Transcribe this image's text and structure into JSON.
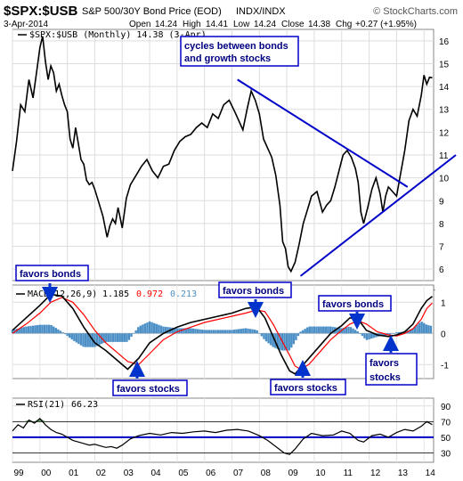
{
  "header": {
    "symbol": "$SPX:$USB",
    "description": "S&P 500/30Y Bond Price (EOD)",
    "exchange": "INDX/INDX",
    "date": "3-Apr-2014",
    "open_label": "Open",
    "open": "14.24",
    "high_label": "High",
    "high": "14.41",
    "low_label": "Low",
    "low": "14.24",
    "close_label": "Close",
    "close": "14.38",
    "chg_label": "Chg",
    "chg": "+0.27 (+1.95%)",
    "brand": "© StockCharts.com"
  },
  "colors": {
    "price": "#000000",
    "trendline": "#0000c8",
    "macd_signal": "#ff0000",
    "histogram": "#4b8fc6",
    "annotation_border": "#0000c8",
    "annotation_text": "#000080",
    "arrow": "#0033cc",
    "rsi_fill": "#3a7d3a"
  },
  "chart_data": [
    {
      "type": "line",
      "panel": "price",
      "legend": "$SPX:$USB (Monthly) 14.38 (3-Apr)",
      "x_ticks": [
        "99",
        "00",
        "01",
        "02",
        "03",
        "04",
        "05",
        "06",
        "07",
        "08",
        "09",
        "10",
        "11",
        "12",
        "13",
        "14"
      ],
      "y_ticks": [
        6,
        7,
        8,
        9,
        10,
        11,
        12,
        13,
        14,
        15,
        16
      ],
      "ylim": [
        5.5,
        16.5
      ],
      "xlim": [
        1999.0,
        2014.35
      ],
      "series": [
        {
          "x": [
            1999.0,
            1999.15,
            1999.3,
            1999.45,
            1999.6,
            1999.75,
            1999.9,
            2000.0,
            2000.1,
            2000.2,
            2000.3,
            2000.4,
            2000.5,
            2000.6,
            2000.7,
            2000.8,
            2000.9,
            2001.0,
            2001.1,
            2001.2,
            2001.3,
            2001.4,
            2001.5,
            2001.6,
            2001.7,
            2001.8,
            2001.9,
            2002.0,
            2002.15,
            2002.3,
            2002.45,
            2002.55,
            2002.65,
            2002.75,
            2002.85,
            2003.0,
            2003.15,
            2003.3,
            2003.5,
            2003.7,
            2003.9,
            2004.1,
            2004.3,
            2004.5,
            2004.7,
            2004.9,
            2005.1,
            2005.3,
            2005.5,
            2005.7,
            2005.9,
            2006.1,
            2006.3,
            2006.5,
            2006.7,
            2006.9,
            2007.1,
            2007.25,
            2007.4,
            2007.55,
            2007.7,
            2007.85,
            2008.0,
            2008.15,
            2008.3,
            2008.45,
            2008.6,
            2008.75,
            2008.85,
            2008.95,
            2009.05,
            2009.15,
            2009.3,
            2009.45,
            2009.6,
            2009.75,
            2009.9,
            2010.1,
            2010.3,
            2010.45,
            2010.6,
            2010.75,
            2010.9,
            2011.05,
            2011.2,
            2011.35,
            2011.5,
            2011.6,
            2011.7,
            2011.8,
            2011.95,
            2012.1,
            2012.25,
            2012.4,
            2012.5,
            2012.6,
            2012.7,
            2012.85,
            2013.0,
            2013.15,
            2013.3,
            2013.45,
            2013.6,
            2013.75,
            2013.9,
            2014.0,
            2014.1,
            2014.2,
            2014.3
          ],
          "y": [
            10.3,
            11.6,
            13.2,
            12.9,
            14.3,
            13.5,
            14.8,
            15.7,
            16.2,
            15.1,
            14.3,
            14.9,
            14.6,
            13.8,
            14.1,
            13.6,
            13.2,
            12.9,
            11.7,
            11.3,
            12.2,
            11.5,
            10.8,
            10.6,
            9.9,
            9.7,
            9.8,
            9.5,
            8.9,
            8.3,
            7.4,
            7.9,
            8.2,
            8.0,
            8.7,
            7.8,
            9.1,
            9.7,
            10.1,
            10.5,
            10.8,
            10.3,
            10.0,
            10.5,
            10.6,
            11.2,
            11.6,
            11.8,
            11.9,
            12.2,
            12.4,
            12.2,
            12.8,
            12.6,
            13.2,
            13.4,
            12.9,
            12.5,
            12.1,
            13.0,
            13.8,
            13.4,
            12.8,
            11.7,
            11.3,
            10.9,
            10.1,
            8.8,
            7.2,
            6.9,
            6.1,
            5.9,
            6.3,
            7.1,
            8.0,
            8.6,
            9.2,
            9.4,
            8.5,
            8.8,
            9.0,
            9.6,
            10.3,
            11.0,
            11.2,
            10.9,
            10.4,
            9.8,
            8.5,
            8.0,
            8.7,
            9.5,
            10.0,
            9.3,
            8.5,
            9.2,
            9.6,
            9.4,
            9.2,
            10.2,
            11.2,
            12.5,
            13.0,
            12.7,
            13.6,
            14.5,
            14.1,
            14.4,
            14.38
          ]
        }
      ],
      "annotations": [
        {
          "text_lines": [
            "cycles between bonds",
            "and growth stocks"
          ]
        }
      ],
      "trendlines": [
        {
          "name": "upper",
          "from": [
            2007.2,
            14.3
          ],
          "to": [
            2013.4,
            9.6
          ]
        },
        {
          "name": "lower",
          "from": [
            2009.5,
            5.7
          ],
          "to": [
            2014.35,
            10.4
          ]
        }
      ]
    },
    {
      "type": "line",
      "panel": "macd",
      "legend_label": "MACD(12,26,9)",
      "legend_macd": "1.185",
      "legend_signal": "0.972",
      "legend_hist": "0.213",
      "y_ticks": [
        -1,
        0,
        1
      ],
      "ylim": [
        -1.45,
        1.55
      ],
      "series": [
        {
          "name": "MACD",
          "x": [
            1999.0,
            1999.5,
            2000.0,
            2000.4,
            2000.8,
            2001.2,
            2001.6,
            2002.0,
            2002.4,
            2002.8,
            2003.2,
            2003.6,
            2004.0,
            2004.5,
            2005.0,
            2005.5,
            2006.0,
            2006.5,
            2007.0,
            2007.5,
            2007.9,
            2008.2,
            2008.5,
            2008.8,
            2009.1,
            2009.3,
            2009.5,
            2009.8,
            2010.2,
            2010.6,
            2011.0,
            2011.3,
            2011.6,
            2011.9,
            2012.3,
            2012.7,
            2013.0,
            2013.3,
            2013.6,
            2013.9,
            2014.1,
            2014.3
          ],
          "y": [
            0.1,
            0.5,
            0.9,
            1.25,
            1.2,
            0.8,
            0.2,
            -0.3,
            -0.55,
            -0.85,
            -1.15,
            -0.8,
            -0.3,
            0.0,
            0.2,
            0.35,
            0.45,
            0.55,
            0.65,
            0.8,
            0.85,
            0.5,
            -0.1,
            -0.7,
            -1.2,
            -1.3,
            -1.1,
            -0.8,
            -0.4,
            0.0,
            0.25,
            0.5,
            0.45,
            0.1,
            -0.05,
            -0.1,
            -0.05,
            0.05,
            0.3,
            0.8,
            1.05,
            1.185
          ]
        },
        {
          "name": "Signal",
          "x": [
            1999.0,
            1999.5,
            2000.0,
            2000.4,
            2000.8,
            2001.2,
            2001.6,
            2002.0,
            2002.4,
            2002.8,
            2003.2,
            2003.6,
            2004.0,
            2004.5,
            2005.0,
            2005.5,
            2006.0,
            2006.5,
            2007.0,
            2007.5,
            2007.9,
            2008.2,
            2008.5,
            2008.8,
            2009.1,
            2009.3,
            2009.5,
            2009.8,
            2010.2,
            2010.6,
            2011.0,
            2011.3,
            2011.6,
            2011.9,
            2012.3,
            2012.7,
            2013.0,
            2013.3,
            2013.6,
            2013.9,
            2014.1,
            2014.3
          ],
          "y": [
            0.0,
            0.3,
            0.65,
            1.0,
            1.15,
            1.0,
            0.6,
            0.1,
            -0.3,
            -0.6,
            -0.9,
            -1.0,
            -0.65,
            -0.2,
            0.05,
            0.2,
            0.35,
            0.45,
            0.55,
            0.65,
            0.75,
            0.7,
            0.3,
            -0.2,
            -0.7,
            -1.05,
            -1.15,
            -1.0,
            -0.6,
            -0.2,
            0.1,
            0.3,
            0.4,
            0.3,
            0.05,
            -0.05,
            -0.08,
            0.0,
            0.15,
            0.45,
            0.8,
            0.972
          ]
        }
      ],
      "annotations": [
        {
          "text": "favors bonds"
        },
        {
          "text": "favors stocks"
        },
        {
          "text": "favors bonds"
        },
        {
          "text": "favors stocks"
        },
        {
          "text": "favors bonds"
        },
        {
          "text_lines": [
            "favors",
            "stocks"
          ]
        }
      ]
    },
    {
      "type": "line",
      "panel": "rsi",
      "legend_label": "RSI(21)",
      "legend_value": "66.23",
      "y_ticks": [
        30,
        50,
        70,
        90
      ],
      "ylim": [
        18,
        100
      ],
      "reference_lines": [
        70,
        50,
        30
      ],
      "series": [
        {
          "name": "RSI",
          "x": [
            1999.0,
            1999.2,
            1999.4,
            1999.6,
            1999.8,
            2000.0,
            2000.2,
            2000.4,
            2000.6,
            2000.8,
            2001.0,
            2001.2,
            2001.4,
            2001.6,
            2001.8,
            2002.0,
            2002.2,
            2002.4,
            2002.6,
            2002.8,
            2003.0,
            2003.3,
            2003.6,
            2004.0,
            2004.4,
            2004.8,
            2005.2,
            2005.6,
            2006.0,
            2006.4,
            2006.8,
            2007.2,
            2007.6,
            2008.0,
            2008.3,
            2008.6,
            2008.9,
            2009.1,
            2009.3,
            2009.6,
            2009.9,
            2010.3,
            2010.7,
            2011.0,
            2011.3,
            2011.6,
            2011.8,
            2012.1,
            2012.4,
            2012.7,
            2013.0,
            2013.3,
            2013.6,
            2013.9,
            2014.1,
            2014.3
          ],
          "y": [
            58,
            66,
            62,
            72,
            68,
            74,
            66,
            60,
            56,
            54,
            50,
            46,
            44,
            42,
            40,
            41,
            39,
            37,
            38,
            36,
            40,
            48,
            52,
            55,
            53,
            56,
            55,
            57,
            58,
            56,
            59,
            60,
            58,
            52,
            46,
            38,
            30,
            28,
            35,
            48,
            55,
            52,
            53,
            58,
            55,
            46,
            44,
            52,
            54,
            50,
            56,
            60,
            58,
            64,
            70,
            66.23
          ]
        }
      ]
    }
  ]
}
